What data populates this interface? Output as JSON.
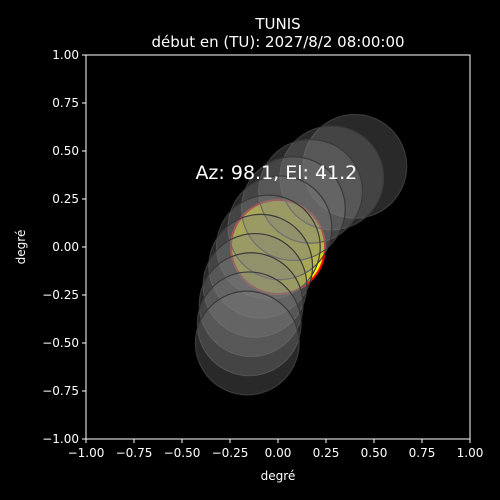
{
  "chart_data": {
    "type": "scatter",
    "title": "TUNIS",
    "subtitle": "début en (TU): 2027/8/2 08:00:00",
    "xlabel": "degré",
    "ylabel": "degré",
    "xlim": [
      -1.0,
      1.0
    ],
    "ylim": [
      -1.0,
      1.0
    ],
    "xticks": [
      -1.0,
      -0.75,
      -0.5,
      -0.25,
      0.0,
      0.25,
      0.5,
      0.75,
      1.0
    ],
    "yticks": [
      -1.0,
      -0.75,
      -0.5,
      -0.25,
      0.0,
      0.25,
      0.5,
      0.75,
      1.0
    ],
    "xtick_labels": [
      "−1.00",
      "−0.75",
      "−0.50",
      "−0.25",
      "0.00",
      "0.25",
      "0.50",
      "0.75",
      "1.00"
    ],
    "ytick_labels": [
      "−1.00",
      "−0.75",
      "−0.50",
      "−0.25",
      "0.00",
      "0.25",
      "0.50",
      "0.75",
      "1.00"
    ],
    "grid": false,
    "annotation": "Az: 98.1, El: 41.2",
    "annotation_position": [
      -0.43,
      0.39
    ],
    "sun": {
      "x": 0.0,
      "y": 0.0,
      "radius": 0.245,
      "color": "#ffff00",
      "edge": "#ff0000"
    },
    "moon_positions": {
      "radius": 0.27,
      "color": "#808080",
      "points": [
        {
          "x": 0.4,
          "y": 0.42
        },
        {
          "x": 0.28,
          "y": 0.36
        },
        {
          "x": 0.17,
          "y": 0.29
        },
        {
          "x": 0.08,
          "y": 0.2
        },
        {
          "x": 0.01,
          "y": 0.1
        },
        {
          "x": -0.05,
          "y": 0.0
        },
        {
          "x": -0.09,
          "y": -0.1
        },
        {
          "x": -0.12,
          "y": -0.2
        },
        {
          "x": -0.14,
          "y": -0.3
        },
        {
          "x": -0.15,
          "y": -0.4
        },
        {
          "x": -0.16,
          "y": -0.5
        }
      ]
    },
    "background": "#000000",
    "axis_color": "#ffffff"
  }
}
